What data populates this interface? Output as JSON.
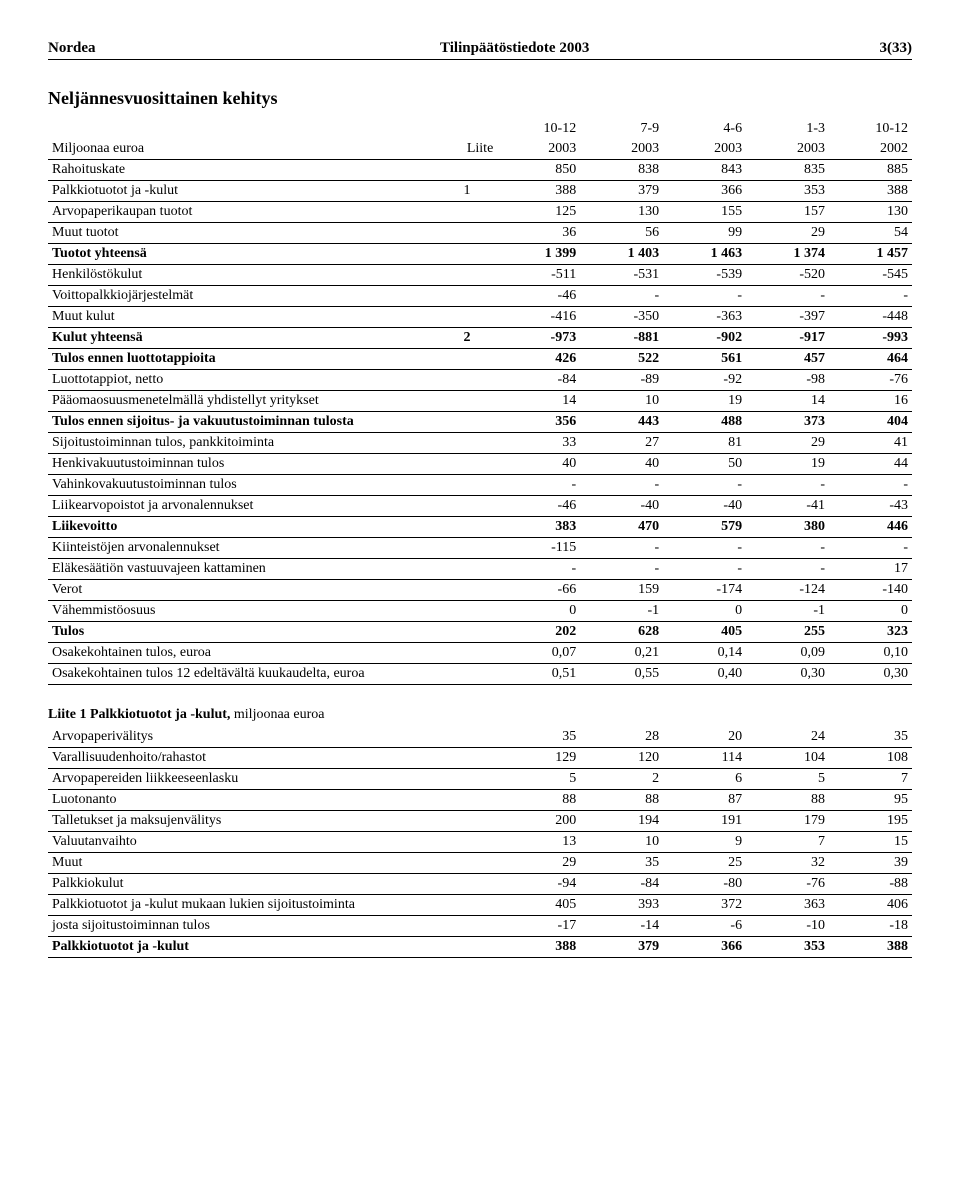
{
  "header": {
    "left": "Nordea",
    "center": "Tilinpäätöstiedote 2003",
    "right": "3(33)"
  },
  "title": "Neljännesvuosittainen kehitys",
  "periods_top": [
    "10-12",
    "7-9",
    "4-6",
    "1-3",
    "10-12"
  ],
  "col_header": {
    "label": "Miljoonaa euroa",
    "liite": "Liite",
    "years": [
      "2003",
      "2003",
      "2003",
      "2003",
      "2002"
    ]
  },
  "table1": [
    {
      "label": "Rahoituskate",
      "liite": "",
      "vals": [
        "850",
        "838",
        "843",
        "835",
        "885"
      ],
      "bold": false
    },
    {
      "label": "Palkkiotuotot ja -kulut",
      "liite": "1",
      "vals": [
        "388",
        "379",
        "366",
        "353",
        "388"
      ],
      "bold": false
    },
    {
      "label": "Arvopaperikaupan tuotot",
      "liite": "",
      "vals": [
        "125",
        "130",
        "155",
        "157",
        "130"
      ],
      "bold": false
    },
    {
      "label": "Muut tuotot",
      "liite": "",
      "vals": [
        "36",
        "56",
        "99",
        "29",
        "54"
      ],
      "bold": false
    },
    {
      "label": "Tuotot yhteensä",
      "liite": "",
      "vals": [
        "1 399",
        "1 403",
        "1 463",
        "1 374",
        "1 457"
      ],
      "bold": true
    },
    {
      "label": "Henkilöstökulut",
      "liite": "",
      "vals": [
        "-511",
        "-531",
        "-539",
        "-520",
        "-545"
      ],
      "bold": false
    },
    {
      "label": "Voittopalkkiojärjestelmät",
      "liite": "",
      "vals": [
        "-46",
        "-",
        "-",
        "-",
        "-"
      ],
      "bold": false
    },
    {
      "label": "Muut kulut",
      "liite": "",
      "vals": [
        "-416",
        "-350",
        "-363",
        "-397",
        "-448"
      ],
      "bold": false
    },
    {
      "label": "Kulut yhteensä",
      "liite": "2",
      "vals": [
        "-973",
        "-881",
        "-902",
        "-917",
        "-993"
      ],
      "bold": true
    },
    {
      "label": "Tulos ennen luottotappioita",
      "liite": "",
      "vals": [
        "426",
        "522",
        "561",
        "457",
        "464"
      ],
      "bold": true
    },
    {
      "label": "Luottotappiot, netto",
      "liite": "",
      "vals": [
        "-84",
        "-89",
        "-92",
        "-98",
        "-76"
      ],
      "bold": false
    },
    {
      "label": "Pääomaosuusmenetelmällä yhdistellyt yritykset",
      "liite": "",
      "vals": [
        "14",
        "10",
        "19",
        "14",
        "16"
      ],
      "bold": false
    },
    {
      "label": "Tulos ennen sijoitus- ja vakuutustoiminnan tulosta",
      "liite": "",
      "vals": [
        "356",
        "443",
        "488",
        "373",
        "404"
      ],
      "bold": true
    },
    {
      "label": "Sijoitustoiminnan tulos, pankkitoiminta",
      "liite": "",
      "vals": [
        "33",
        "27",
        "81",
        "29",
        "41"
      ],
      "bold": false
    },
    {
      "label": "Henkivakuutustoiminnan tulos",
      "liite": "",
      "vals": [
        "40",
        "40",
        "50",
        "19",
        "44"
      ],
      "bold": false
    },
    {
      "label": "Vahinkovakuutustoiminnan tulos",
      "liite": "",
      "vals": [
        "-",
        "-",
        "-",
        "-",
        "-"
      ],
      "bold": false
    },
    {
      "label": "Liikearvopoistot ja arvonalennukset",
      "liite": "",
      "vals": [
        "-46",
        "-40",
        "-40",
        "-41",
        "-43"
      ],
      "bold": false
    },
    {
      "label": "Liikevoitto",
      "liite": "",
      "vals": [
        "383",
        "470",
        "579",
        "380",
        "446"
      ],
      "bold": true
    },
    {
      "label": "Kiinteistöjen arvonalennukset",
      "liite": "",
      "vals": [
        "-115",
        "-",
        "-",
        "-",
        "-"
      ],
      "bold": false
    },
    {
      "label": "Eläkesäätiön vastuuvajeen kattaminen",
      "liite": "",
      "vals": [
        "-",
        "-",
        "-",
        "-",
        "17"
      ],
      "bold": false
    },
    {
      "label": "Verot",
      "liite": "",
      "vals": [
        "-66",
        "159",
        "-174",
        "-124",
        "-140"
      ],
      "bold": false
    },
    {
      "label": "Vähemmistöosuus",
      "liite": "",
      "vals": [
        "0",
        "-1",
        "0",
        "-1",
        "0"
      ],
      "bold": false
    },
    {
      "label": "Tulos",
      "liite": "",
      "vals": [
        "202",
        "628",
        "405",
        "255",
        "323"
      ],
      "bold": true
    },
    {
      "label": "Osakekohtainen tulos, euroa",
      "liite": "",
      "vals": [
        "0,07",
        "0,21",
        "0,14",
        "0,09",
        "0,10"
      ],
      "bold": false
    },
    {
      "label": "Osakekohtainen tulos 12 edeltävältä kuukaudelta, euroa",
      "liite": "",
      "vals": [
        "0,51",
        "0,55",
        "0,40",
        "0,30",
        "0,30"
      ],
      "bold": false
    }
  ],
  "sub_heading": {
    "bold": "Liite 1   Palkkiotuotot ja -kulut,",
    "light": " miljoonaa euroa"
  },
  "table2": [
    {
      "label": "Arvopaperivälitys",
      "vals": [
        "35",
        "28",
        "20",
        "24",
        "35"
      ],
      "bold": false
    },
    {
      "label": "Varallisuudenhoito/rahastot",
      "vals": [
        "129",
        "120",
        "114",
        "104",
        "108"
      ],
      "bold": false
    },
    {
      "label": "Arvopapereiden liikkeeseenlasku",
      "vals": [
        "5",
        "2",
        "6",
        "5",
        "7"
      ],
      "bold": false
    },
    {
      "label": "Luotonanto",
      "vals": [
        "88",
        "88",
        "87",
        "88",
        "95"
      ],
      "bold": false
    },
    {
      "label": "Talletukset ja maksujenvälitys",
      "vals": [
        "200",
        "194",
        "191",
        "179",
        "195"
      ],
      "bold": false
    },
    {
      "label": "Valuutanvaihto",
      "vals": [
        "13",
        "10",
        "9",
        "7",
        "15"
      ],
      "bold": false
    },
    {
      "label": "Muut",
      "vals": [
        "29",
        "35",
        "25",
        "32",
        "39"
      ],
      "bold": false
    },
    {
      "label": "Palkkiokulut",
      "vals": [
        "-94",
        "-84",
        "-80",
        "-76",
        "-88"
      ],
      "bold": false
    },
    {
      "label": "Palkkiotuotot ja -kulut mukaan lukien sijoitustoiminta",
      "vals": [
        "405",
        "393",
        "372",
        "363",
        "406"
      ],
      "bold": false
    },
    {
      "label": "josta sijoitustoiminnan tulos",
      "vals": [
        "-17",
        "-14",
        "-6",
        "-10",
        "-18"
      ],
      "bold": false
    },
    {
      "label": "Palkkiotuotot ja -kulut",
      "vals": [
        "388",
        "379",
        "366",
        "353",
        "388"
      ],
      "bold": true
    }
  ]
}
